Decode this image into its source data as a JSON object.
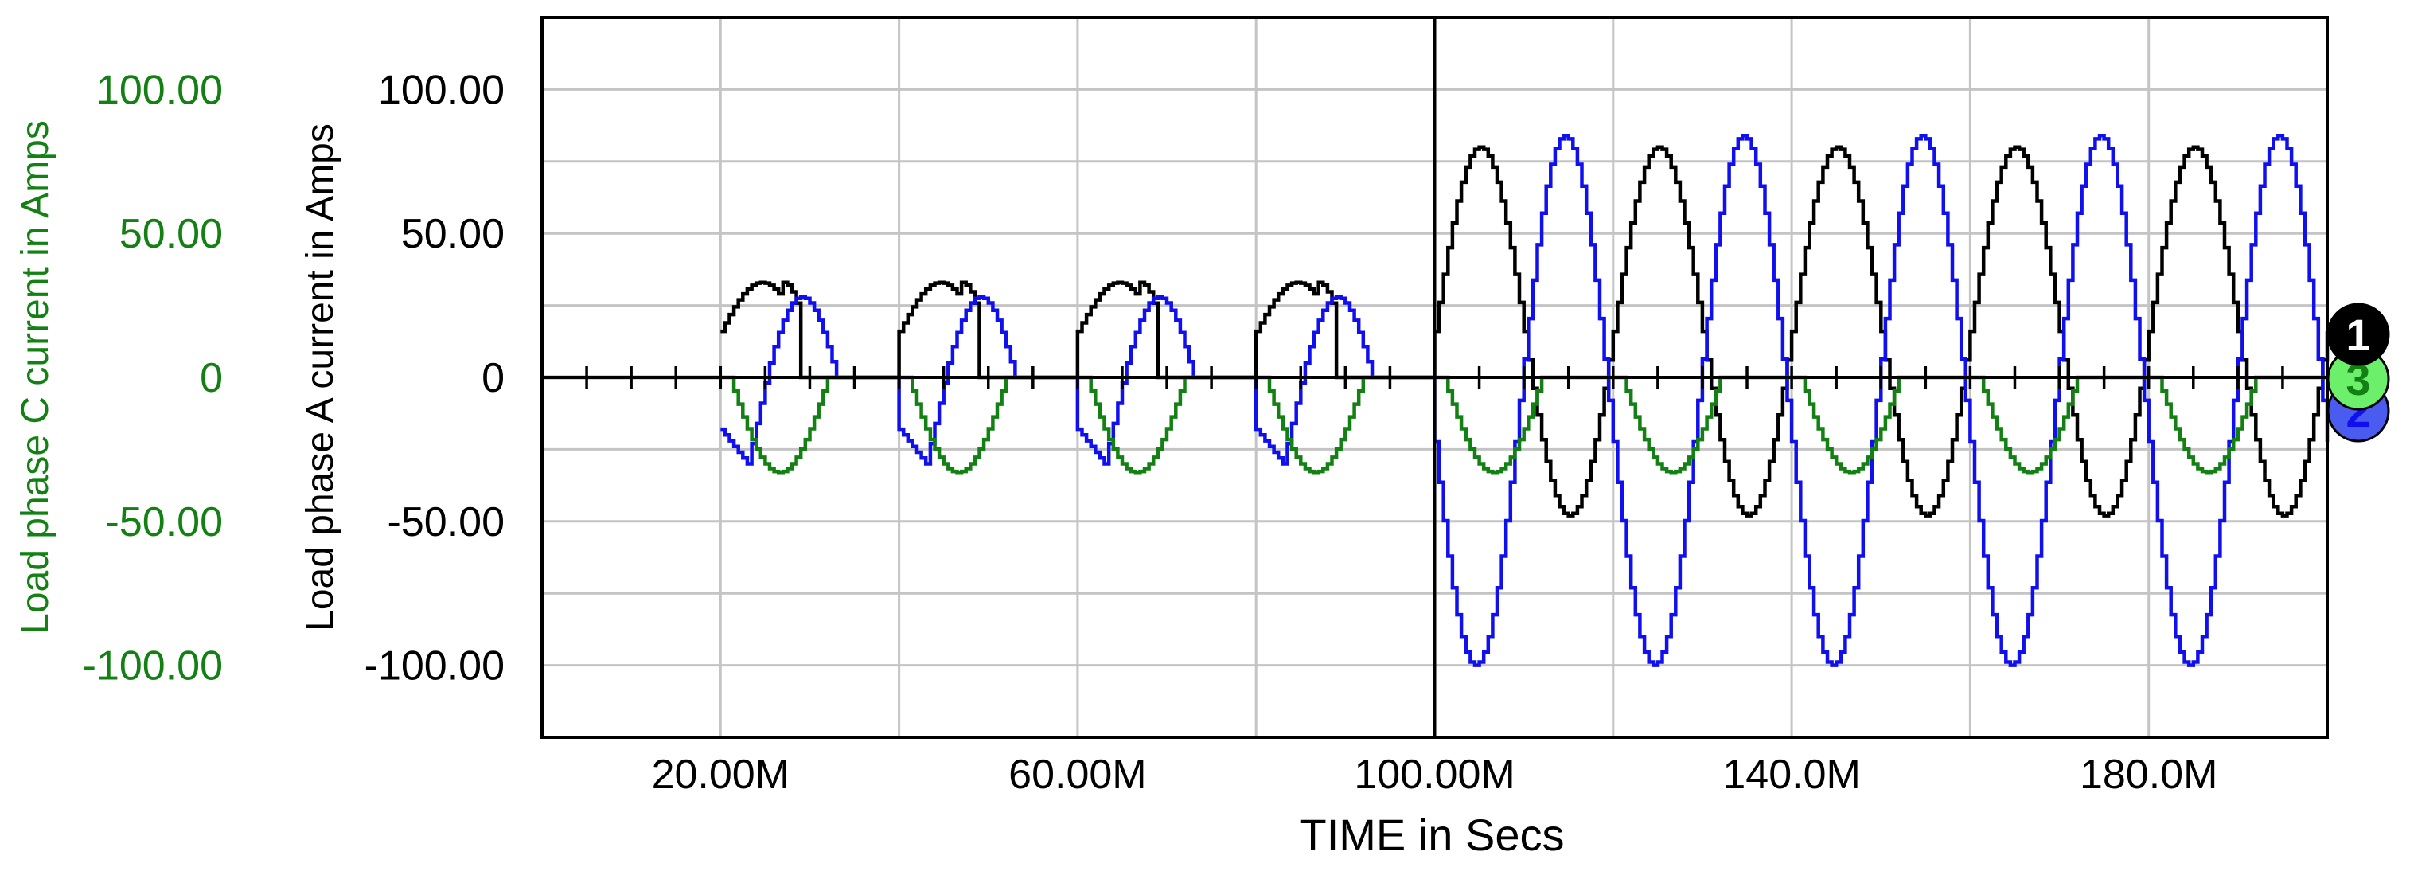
{
  "chart_data": {
    "type": "line",
    "title": "",
    "xlabel": "TIME in Secs",
    "ylabel_left_outer": "Load phase C current in Amps",
    "ylabel_left_inner": "Load phase A current in Amps",
    "x_unit": "ms",
    "xlim": [
      0,
      200
    ],
    "ylim_A": [
      -125,
      125
    ],
    "ylim_C": [
      -125,
      125
    ],
    "grid": true,
    "x_tick_labels": [
      "20.00M",
      "60.00M",
      "100.00M",
      "140.0M",
      "180.0M"
    ],
    "x_tick_values": [
      20,
      60,
      100,
      140,
      180
    ],
    "y_tick_labels_A": [
      "100.00",
      "50.00",
      "0",
      "-50.00",
      "-100.00"
    ],
    "y_tick_labels_C": [
      "100.00",
      "50.00",
      "0",
      "-50.00",
      "-100.00"
    ],
    "y_tick_values": [
      100,
      50,
      0,
      -50,
      -100
    ],
    "cursor_x": 100,
    "series": [
      {
        "marker": "1",
        "axis": "A",
        "color": "#000000",
        "segments": [
          {
            "t0": 20,
            "t1": 100,
            "type": "halfwave",
            "period": 20,
            "amplitude": 33,
            "baseline_start": 16,
            "phase_deg": 30
          },
          {
            "t0": 100,
            "t1": 200,
            "type": "sine",
            "period": 20,
            "amplitude": 64,
            "offset": 16,
            "phase_deg": -45
          }
        ]
      },
      {
        "marker": "2",
        "axis": "A",
        "color": "#1010ee",
        "segments": [
          {
            "t0": 20,
            "t1": 100,
            "type": "halfwave",
            "period": 20,
            "amplitude": 30,
            "baseline_start": -18,
            "phase_deg": -150
          },
          {
            "t0": 100,
            "t1": 200,
            "type": "sine",
            "period": 20,
            "amplitude": 92,
            "offset": -8,
            "phase_deg": -120
          }
        ]
      },
      {
        "marker": "3",
        "axis": "C",
        "color": "#128012",
        "segments": [
          {
            "t0": 20,
            "t1": 100,
            "type": "neghalfwave",
            "period": 20,
            "amplitude": 33,
            "phase_deg": 90
          },
          {
            "t0": 100,
            "t1": 200,
            "type": "neghalfwave",
            "period": 20,
            "amplitude": 33,
            "phase_deg": 90
          }
        ]
      }
    ],
    "marker_colors": {
      "1": "#000000",
      "2": "#4a5cf0",
      "3": "#6cf06c"
    }
  }
}
